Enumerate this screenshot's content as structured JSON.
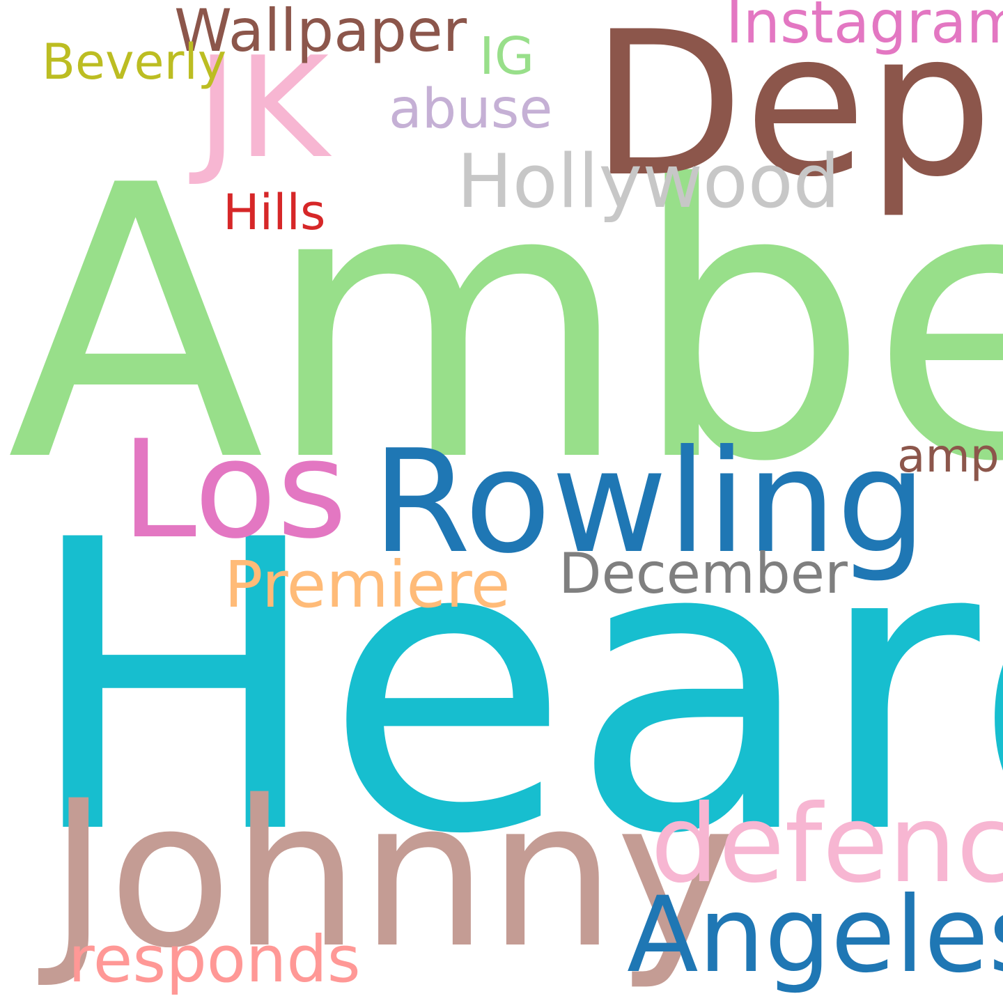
{
  "words": [
    {
      "key": "amber",
      "text": "Amber",
      "color": "#98df8a"
    },
    {
      "key": "heard",
      "text": "Heard",
      "color": "#17becf"
    },
    {
      "key": "depp",
      "text": "Depp",
      "color": "#8c564b"
    },
    {
      "key": "johnny",
      "text": "Johnny",
      "color": "#c49c94"
    },
    {
      "key": "rowling",
      "text": "Rowling",
      "color": "#1f77b4"
    },
    {
      "key": "los",
      "text": "Los",
      "color": "#e377c2"
    },
    {
      "key": "jk",
      "text": "JK",
      "color": "#f7b6d2"
    },
    {
      "key": "angeles",
      "text": "Angeles",
      "color": "#1f77b4"
    },
    {
      "key": "defence",
      "text": "defence",
      "color": "#f7b6d2"
    },
    {
      "key": "hollywood",
      "text": "Hollywood",
      "color": "#c7c7c7"
    },
    {
      "key": "premiere",
      "text": "Premiere",
      "color": "#ffbb78"
    },
    {
      "key": "december",
      "text": "December",
      "color": "#7f7f7f"
    },
    {
      "key": "responds",
      "text": "responds",
      "color": "#ff9896"
    },
    {
      "key": "wallpaper",
      "text": "Wallpaper",
      "color": "#8c564b"
    },
    {
      "key": "instagram",
      "text": "Instagram",
      "color": "#e377c2"
    },
    {
      "key": "abuse",
      "text": "abuse",
      "color": "#c5b0d5"
    },
    {
      "key": "beverly",
      "text": "Beverly",
      "color": "#bcbd22"
    },
    {
      "key": "hills",
      "text": "Hills",
      "color": "#d62728"
    },
    {
      "key": "ig",
      "text": "IG",
      "color": "#98df8a"
    },
    {
      "key": "amp",
      "text": "amp",
      "color": "#8c564b"
    }
  ]
}
